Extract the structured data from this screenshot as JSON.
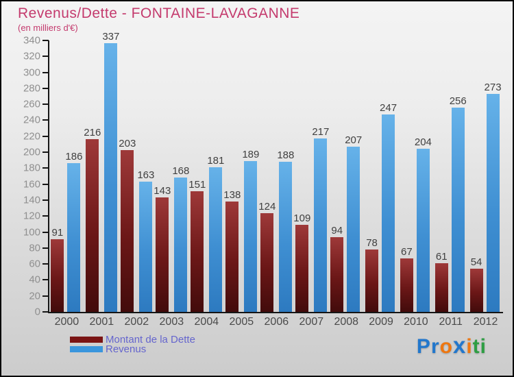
{
  "title": "Revenus/Dette - FONTAINE-LAVAGANNE",
  "subtitle": "(en milliers d'€)",
  "legend": [
    {
      "label": "Montant de la Dette",
      "color": "#7a1414"
    },
    {
      "label": "Revenus",
      "color": "#3a96dd"
    }
  ],
  "logo": {
    "text": "Proxiti",
    "letters": [
      {
        "ch": "P",
        "color": "#2277cc"
      },
      {
        "ch": "r",
        "color": "#2277cc"
      },
      {
        "ch": "o",
        "color": "#ee7711"
      },
      {
        "ch": "x",
        "color": "#2277cc"
      },
      {
        "ch": "i",
        "color": "#ee7711"
      },
      {
        "ch": "t",
        "color": "#2f9e44"
      },
      {
        "ch": "i",
        "color": "#2f9e44"
      }
    ]
  },
  "chart_data": {
    "type": "bar",
    "title": "Revenus/Dette - FONTAINE-LAVAGANNE",
    "subtitle": "(en milliers d'€)",
    "xlabel": "",
    "ylabel": "",
    "categories": [
      "2000",
      "2001",
      "2002",
      "2003",
      "2004",
      "2005",
      "2006",
      "2007",
      "2008",
      "2009",
      "2010",
      "2011",
      "2012"
    ],
    "series": [
      {
        "name": "Montant de la Dette",
        "values": [
          91,
          216,
          203,
          143,
          151,
          138,
          124,
          109,
          94,
          78,
          67,
          61,
          54
        ],
        "color": "#7a1414"
      },
      {
        "name": "Revenus",
        "values": [
          186,
          337,
          163,
          168,
          181,
          189,
          188,
          217,
          207,
          247,
          204,
          256,
          273
        ],
        "color": "#3a96dd"
      }
    ],
    "ylim": [
      0,
      340
    ],
    "ytick_step": 20,
    "grid": false,
    "legend_position": "bottom-left"
  }
}
